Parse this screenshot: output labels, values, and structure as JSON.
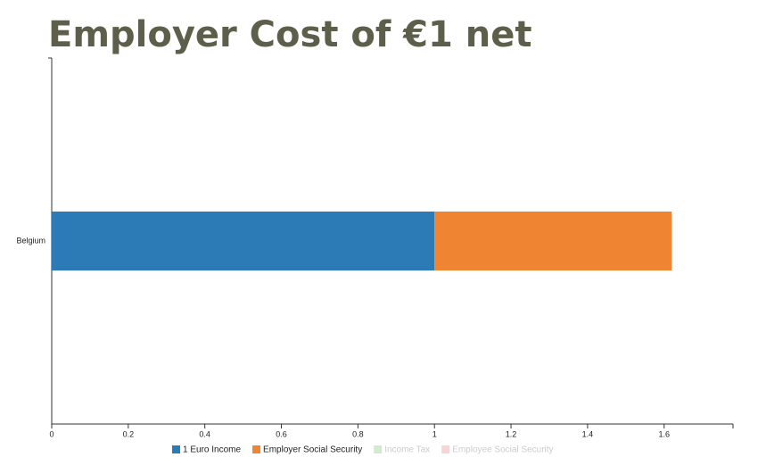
{
  "chart_data": {
    "type": "stacked_bar_horizontal",
    "title": "Employer Cost of €1 net",
    "categories": [
      "Belgium"
    ],
    "series": [
      {
        "name": "1 Euro Income",
        "color": "#2c7bb6",
        "values": [
          1
        ],
        "visible": true
      },
      {
        "name": "Employer Social Security",
        "color": "#ef8532",
        "values": [
          0.62
        ],
        "visible": true
      },
      {
        "name": "Income Tax",
        "color": "#d5e9d1",
        "values": [
          null
        ],
        "visible": false
      },
      {
        "name": "Employee Social Security",
        "color": "#f6d5d3",
        "values": [
          null
        ],
        "visible": false
      }
    ],
    "xlim": [
      0,
      1.78
    ],
    "xticks": [
      0,
      0.2,
      0.4,
      0.6,
      0.8,
      1,
      1.2,
      1.4,
      1.6
    ],
    "grid": false
  }
}
